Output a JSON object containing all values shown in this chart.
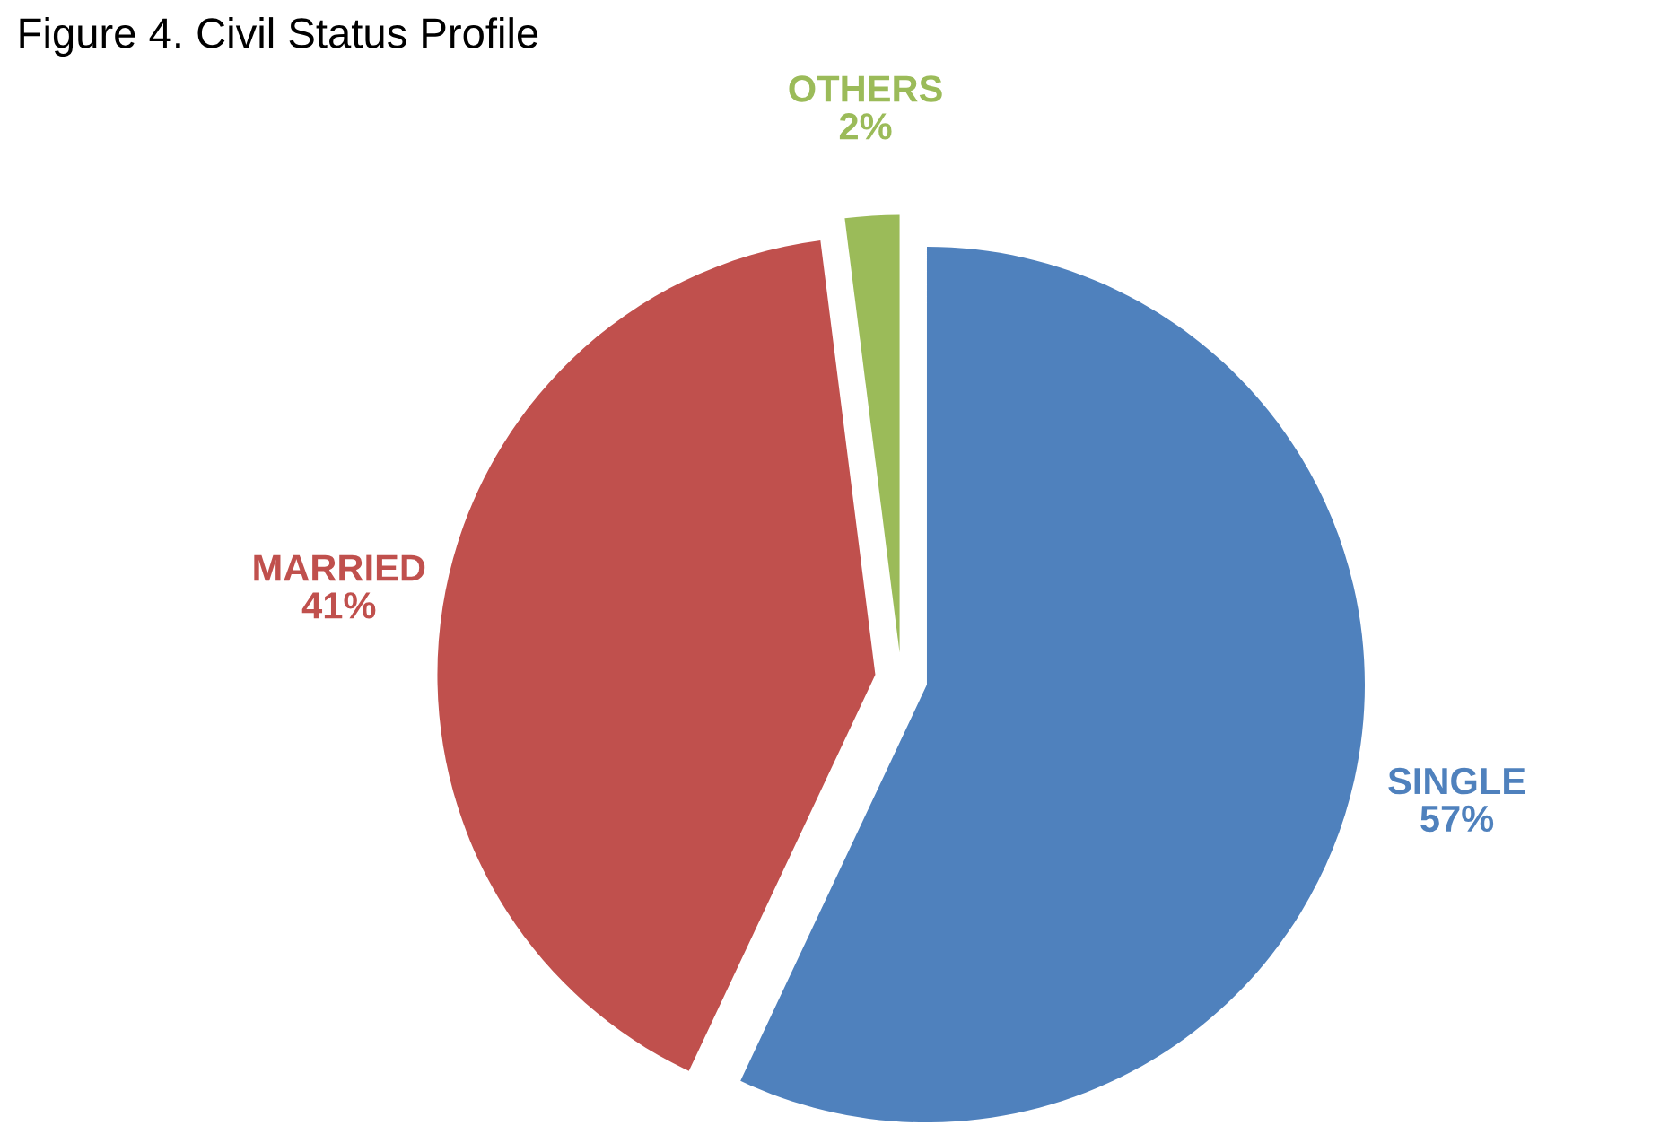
{
  "chart_data": {
    "type": "pie",
    "title": "Figure 4. Civil Status Profile",
    "categories": [
      "SINGLE",
      "MARRIED",
      "OTHERS"
    ],
    "values": [
      57,
      41,
      2
    ],
    "colors": [
      "#4f81bd",
      "#c0504d",
      "#9bbb59"
    ],
    "value_labels": [
      "57%",
      "41%",
      "2%"
    ]
  }
}
